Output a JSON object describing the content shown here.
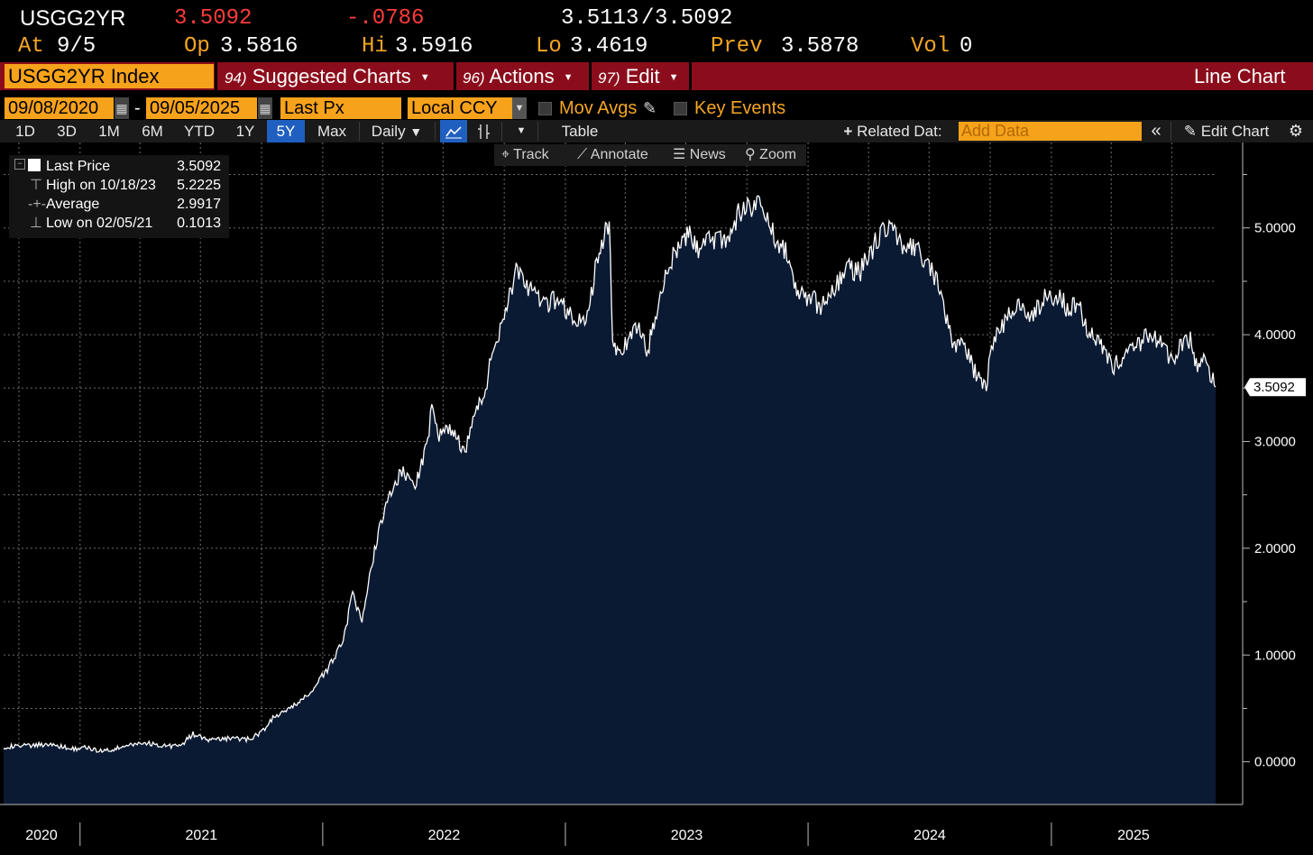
{
  "quote": {
    "ticker": "USGG2YR",
    "last": "3.5092",
    "change": "-.0786",
    "bid": "3.5113",
    "ask_sep": "/",
    "ask": "3.5092",
    "at_label": "At",
    "at_value": "9/5",
    "op_label": "Op",
    "op_value": "3.5816",
    "hi_label": "Hi",
    "hi_value": "3.5916",
    "lo_label": "Lo",
    "lo_value": "3.4619",
    "prev_label": "Prev",
    "prev_value": "3.5878",
    "vol_label": "Vol",
    "vol_value": "0"
  },
  "menubar": {
    "security": "USGG2YR Index",
    "suggested_num": "94)",
    "suggested": "Suggested Charts",
    "actions_num": "96)",
    "actions": "Actions",
    "edit_num": "97)",
    "edit": "Edit",
    "chart_type": "Line Chart"
  },
  "settings": {
    "start_date": "09/08/2020",
    "date_sep": "-",
    "end_date": "09/05/2025",
    "field": "Last Px",
    "currency": "Local CCY",
    "mov_avgs": "Mov Avgs",
    "key_events": "Key Events"
  },
  "toolbar": {
    "ranges": [
      "1D",
      "3D",
      "1M",
      "6M",
      "YTD",
      "1Y",
      "5Y",
      "Max"
    ],
    "selected_range": "5Y",
    "frequency": "Daily",
    "table": "Table",
    "related_data": "Related Dat:",
    "add_data_placeholder": "Add Data",
    "edit_chart": "Edit Chart"
  },
  "subtoolbar": {
    "track": "Track",
    "annotate": "Annotate",
    "news": "News",
    "zoom": "Zoom"
  },
  "legend": {
    "last_label": "Last Price",
    "last_value": "3.5092",
    "high_label": "High on 10/18/23",
    "high_value": "5.2225",
    "avg_label": "Average",
    "avg_value": "2.9917",
    "low_label": "Low on 02/05/21",
    "low_value": "0.1013"
  },
  "colors": {
    "area_fill": "#0b1a33",
    "line": "#ffffff",
    "menubar": "#8b0d1c",
    "orange": "#f7a21b",
    "change_negative": "#ff3b3b"
  },
  "chart_data": {
    "type": "area",
    "series": [
      {
        "points": [
          [
            "2020-09-08",
            0.14
          ],
          [
            "2020-10-15",
            0.15
          ],
          [
            "2020-11-20",
            0.17
          ],
          [
            "2020-12-15",
            0.12
          ],
          [
            "2021-01-10",
            0.13
          ],
          [
            "2021-02-05",
            0.1
          ],
          [
            "2021-03-10",
            0.14
          ],
          [
            "2021-04-05",
            0.18
          ],
          [
            "2021-05-10",
            0.15
          ],
          [
            "2021-06-01",
            0.15
          ],
          [
            "2021-06-20",
            0.26
          ],
          [
            "2021-07-15",
            0.2
          ],
          [
            "2021-08-15",
            0.22
          ],
          [
            "2021-09-10",
            0.21
          ],
          [
            "2021-09-30",
            0.27
          ],
          [
            "2021-10-20",
            0.42
          ],
          [
            "2021-11-15",
            0.5
          ],
          [
            "2021-12-15",
            0.66
          ],
          [
            "2022-01-10",
            0.88
          ],
          [
            "2022-02-01",
            1.15
          ],
          [
            "2022-02-15",
            1.57
          ],
          [
            "2022-03-01",
            1.3
          ],
          [
            "2022-03-20",
            2.0
          ],
          [
            "2022-04-10",
            2.5
          ],
          [
            "2022-04-30",
            2.72
          ],
          [
            "2022-05-20",
            2.58
          ],
          [
            "2022-06-10",
            3.05
          ],
          [
            "2022-06-14",
            3.43
          ],
          [
            "2022-06-25",
            3.05
          ],
          [
            "2022-07-15",
            3.12
          ],
          [
            "2022-08-01",
            2.88
          ],
          [
            "2022-08-15",
            3.2
          ],
          [
            "2022-09-01",
            3.45
          ],
          [
            "2022-09-15",
            3.87
          ],
          [
            "2022-10-01",
            4.2
          ],
          [
            "2022-10-21",
            4.62
          ],
          [
            "2022-11-10",
            4.4
          ],
          [
            "2022-12-01",
            4.25
          ],
          [
            "2022-12-20",
            4.35
          ],
          [
            "2023-01-10",
            4.15
          ],
          [
            "2023-02-01",
            4.1
          ],
          [
            "2023-02-15",
            4.6
          ],
          [
            "2023-03-08",
            5.07
          ],
          [
            "2023-03-13",
            4.0
          ],
          [
            "2023-03-20",
            3.85
          ],
          [
            "2023-04-05",
            3.9
          ],
          [
            "2023-04-20",
            4.1
          ],
          [
            "2023-05-05",
            3.85
          ],
          [
            "2023-05-20",
            4.3
          ],
          [
            "2023-06-10",
            4.7
          ],
          [
            "2023-07-05",
            4.95
          ],
          [
            "2023-07-20",
            4.8
          ],
          [
            "2023-08-05",
            4.9
          ],
          [
            "2023-09-01",
            4.9
          ],
          [
            "2023-09-20",
            5.15
          ],
          [
            "2023-10-18",
            5.22
          ],
          [
            "2023-11-05",
            5.0
          ],
          [
            "2023-11-30",
            4.75
          ],
          [
            "2023-12-15",
            4.4
          ],
          [
            "2024-01-05",
            4.35
          ],
          [
            "2024-01-20",
            4.25
          ],
          [
            "2024-02-10",
            4.45
          ],
          [
            "2024-03-01",
            4.62
          ],
          [
            "2024-03-20",
            4.6
          ],
          [
            "2024-04-15",
            4.9
          ],
          [
            "2024-04-30",
            5.04
          ],
          [
            "2024-05-20",
            4.85
          ],
          [
            "2024-06-05",
            4.8
          ],
          [
            "2024-06-25",
            4.72
          ],
          [
            "2024-07-15",
            4.45
          ],
          [
            "2024-08-05",
            3.9
          ],
          [
            "2024-08-20",
            3.95
          ],
          [
            "2024-09-10",
            3.62
          ],
          [
            "2024-09-25",
            3.55
          ],
          [
            "2024-10-05",
            3.92
          ],
          [
            "2024-10-25",
            4.15
          ],
          [
            "2024-11-15",
            4.3
          ],
          [
            "2024-12-01",
            4.15
          ],
          [
            "2024-12-20",
            4.33
          ],
          [
            "2025-01-10",
            4.38
          ],
          [
            "2025-01-25",
            4.25
          ],
          [
            "2025-02-10",
            4.3
          ],
          [
            "2025-02-25",
            4.05
          ],
          [
            "2025-03-15",
            3.95
          ],
          [
            "2025-04-05",
            3.7
          ],
          [
            "2025-04-20",
            3.8
          ],
          [
            "2025-05-05",
            3.85
          ],
          [
            "2025-05-25",
            4.0
          ],
          [
            "2025-06-10",
            3.95
          ],
          [
            "2025-06-30",
            3.75
          ],
          [
            "2025-07-15",
            3.9
          ],
          [
            "2025-07-31",
            3.95
          ],
          [
            "2025-08-05",
            3.7
          ],
          [
            "2025-08-20",
            3.75
          ],
          [
            "2025-09-05",
            3.5092
          ]
        ]
      }
    ],
    "y_ticks": [
      "0.0000",
      "1.0000",
      "2.0000",
      "3.0000",
      "4.0000",
      "5.0000"
    ],
    "x_ticks": [
      "2020",
      "2021",
      "2022",
      "2023",
      "2024",
      "2025"
    ],
    "ylim": [
      -0.4,
      5.8
    ],
    "xlim": [
      "2020-09-08",
      "2025-09-05"
    ],
    "last_label": "3.5092",
    "grid": true
  }
}
